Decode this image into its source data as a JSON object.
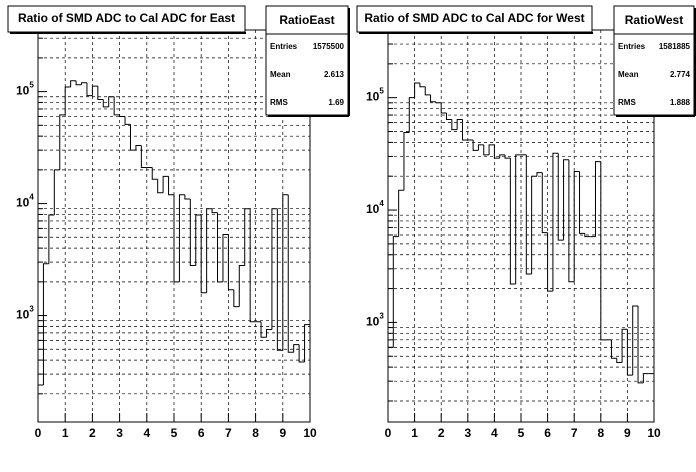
{
  "chart_data": [
    {
      "type": "histogram",
      "title": "Ratio of SMD ADC to Cal ADC for East",
      "bins": [
        0,
        0.2,
        0.4,
        0.6,
        0.8,
        1,
        1.2,
        1.4,
        1.6,
        1.8,
        2,
        2.2,
        2.4,
        2.6,
        2.8,
        3,
        3.2,
        3.4,
        3.6,
        3.8,
        4,
        4.2,
        4.4,
        4.6,
        4.8,
        5,
        5.2,
        5.4,
        5.6,
        5.8,
        6,
        6.2,
        6.4,
        6.6,
        6.8,
        7,
        7.2,
        7.4,
        7.6,
        7.8,
        8,
        8.2,
        8.4,
        8.6,
        8.8,
        9,
        9.2,
        9.4,
        9.6,
        9.8,
        10
      ],
      "values": [
        240,
        2900,
        7900,
        20000,
        62000,
        110000,
        125000,
        115000,
        120000,
        92000,
        112000,
        85000,
        73000,
        90000,
        62000,
        60000,
        51000,
        30000,
        33000,
        21000,
        21000,
        16500,
        12500,
        17500,
        12000,
        2000,
        12000,
        11000,
        2800,
        7900,
        1600,
        9000,
        8300,
        2000,
        5300,
        1700,
        1200,
        2800,
        9000,
        880,
        880,
        640,
        750,
        9000,
        490,
        12000,
        470,
        550,
        385,
        830
      ],
      "color": "#000000",
      "log_y": true,
      "grid": true,
      "xlim": [
        0,
        10
      ],
      "xticks": [
        0,
        1,
        2,
        3,
        4,
        5,
        6,
        7,
        8,
        9,
        10
      ],
      "ylim": [
        112,
        355000
      ],
      "yticks": [
        {
          "value": 1000,
          "label": "10",
          "exponent": "3"
        },
        {
          "value": 10000,
          "label": "10",
          "exponent": "4"
        },
        {
          "value": 100000,
          "label": "10",
          "exponent": "5"
        }
      ],
      "yminorticks": [
        200,
        300,
        400,
        500,
        600,
        700,
        800,
        900,
        2000,
        3000,
        4000,
        5000,
        6000,
        7000,
        8000,
        9000,
        20000,
        30000,
        40000,
        50000,
        60000,
        70000,
        80000,
        90000,
        200000,
        300000
      ],
      "stats": {
        "name": "RatioEast",
        "rows": [
          {
            "label": "Entries",
            "value": "1575500"
          },
          {
            "label": "Mean",
            "value": "2.613"
          },
          {
            "label": "RMS",
            "value": "1.69"
          }
        ]
      }
    },
    {
      "type": "histogram",
      "title": "Ratio of SMD ADC to Cal ADC for West",
      "bins": [
        0,
        0.2,
        0.4,
        0.6,
        0.8,
        1,
        1.2,
        1.4,
        1.6,
        1.8,
        2,
        2.2,
        2.4,
        2.6,
        2.8,
        3,
        3.2,
        3.4,
        3.6,
        3.8,
        4,
        4.2,
        4.4,
        4.6,
        4.8,
        5,
        5.2,
        5.4,
        5.6,
        5.8,
        6,
        6.2,
        6.4,
        6.6,
        6.8,
        7,
        7.2,
        7.4,
        7.6,
        7.8,
        8,
        8.2,
        8.4,
        8.6,
        8.8,
        9,
        9.2,
        9.4,
        9.6,
        9.8,
        10
      ],
      "values": [
        600,
        5800,
        15000,
        49000,
        100000,
        135000,
        125000,
        106000,
        92000,
        90000,
        73000,
        64000,
        52000,
        64000,
        42000,
        42000,
        34000,
        38000,
        31000,
        38000,
        29000,
        31000,
        29000,
        2200,
        31000,
        31000,
        2700,
        20000,
        21500,
        6300,
        1900,
        32000,
        5400,
        28000,
        2300,
        22000,
        6200,
        5800,
        5800,
        27000,
        700,
        700,
        480,
        440,
        870,
        340,
        1400,
        290,
        350,
        350
      ],
      "color": "#000000",
      "log_y": true,
      "grid": true,
      "xlim": [
        0,
        10
      ],
      "xticks": [
        0,
        1,
        2,
        3,
        4,
        5,
        6,
        7,
        8,
        9,
        10
      ],
      "ylim": [
        130,
        400000
      ],
      "yticks": [
        {
          "value": 1000,
          "label": "10",
          "exponent": "3"
        },
        {
          "value": 10000,
          "label": "10",
          "exponent": "4"
        },
        {
          "value": 100000,
          "label": "10",
          "exponent": "5"
        }
      ],
      "yminorticks": [
        200,
        300,
        400,
        500,
        600,
        700,
        800,
        900,
        2000,
        3000,
        4000,
        5000,
        6000,
        7000,
        8000,
        9000,
        20000,
        30000,
        40000,
        50000,
        60000,
        70000,
        80000,
        90000,
        200000,
        300000
      ],
      "stats": {
        "name": "RatioWest",
        "rows": [
          {
            "label": "Entries",
            "value": "1581885"
          },
          {
            "label": "Mean",
            "value": "2.774"
          },
          {
            "label": "RMS",
            "value": "1.888"
          }
        ]
      }
    }
  ]
}
